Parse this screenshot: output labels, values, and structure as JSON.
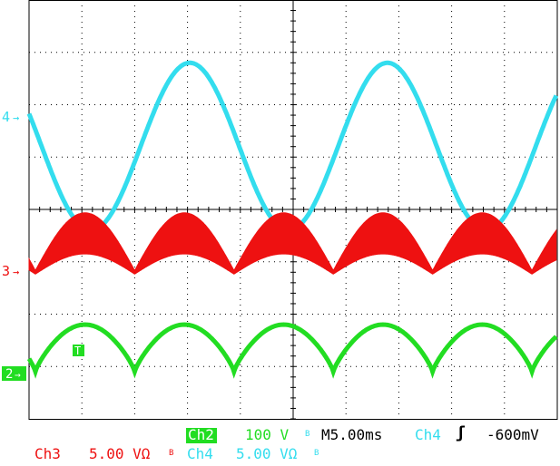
{
  "colors": {
    "ch2": "#22dd22",
    "ch3": "#ee1111",
    "ch4": "#33ddee",
    "grid": "#000000",
    "ch2_box_text": "#ffffff"
  },
  "markers": {
    "ch4": "4",
    "ch3": "3",
    "ch2": "2",
    "trigger": "T"
  },
  "readouts": {
    "ch2_label": "Ch2",
    "ch2_scale": "100 V",
    "bw_symbol": "B",
    "timebase": "M5.00ms",
    "trigger_source": "Ch4",
    "trigger_slope": "ʃ",
    "trigger_level": "-600mV",
    "ch3_label": "Ch3",
    "ch3_scale": "5.00 VΩ",
    "ch4_label": "Ch4",
    "ch4_scale": "5.00 VΩ"
  },
  "chart_data": {
    "type": "line",
    "grid": true,
    "time_per_div_ms": 5,
    "x_range_ms": [
      0,
      50
    ],
    "trigger_level_mV": -600,
    "series": [
      {
        "name": "Ch4",
        "scale": "5.00 V/div",
        "amplitude_div": 1.6,
        "period_ms": 18.7,
        "shape": "sine"
      },
      {
        "name": "Ch3",
        "scale": "5.00 V/div",
        "peak_div": 1.1,
        "period_ms": 9.4,
        "shape": "rectified, thick"
      },
      {
        "name": "Ch2",
        "scale": "100 V/div",
        "peak_div": 0.9,
        "period_ms": 9.4,
        "shape": "rectified"
      }
    ]
  }
}
